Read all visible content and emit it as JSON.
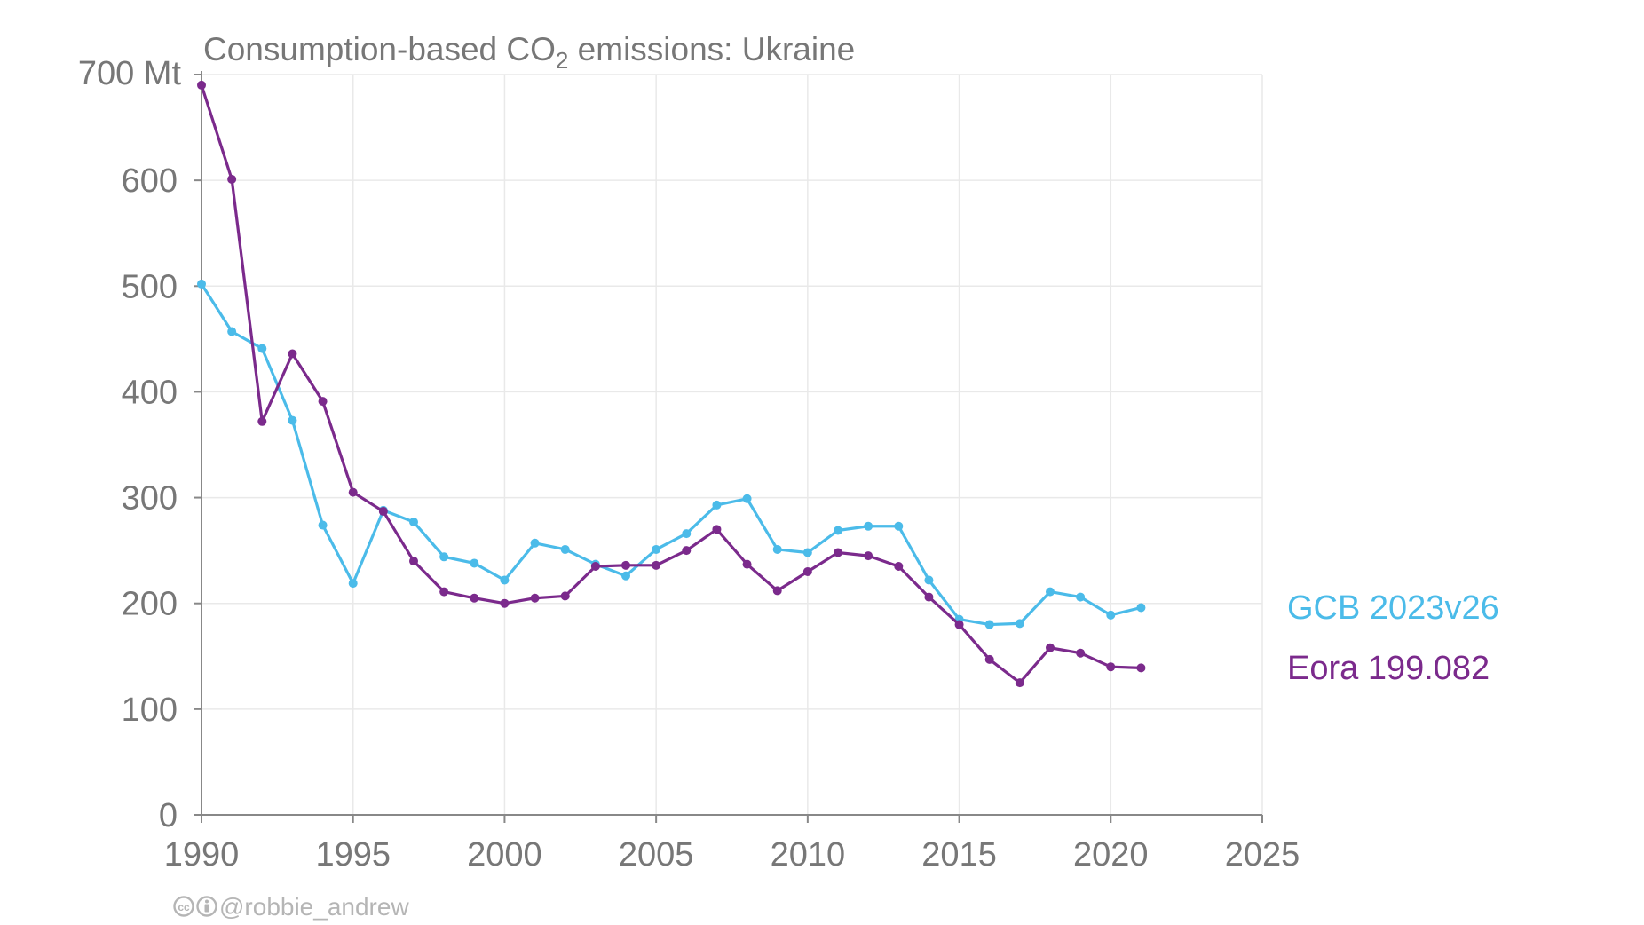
{
  "chart_data": {
    "type": "line",
    "title": "Consumption-based CO",
    "title_subscript": "2",
    "title_suffix": " emissions: Ukraine",
    "y_unit_label": "700 Mt",
    "x_ticks": [
      1990,
      1995,
      2000,
      2005,
      2010,
      2015,
      2020,
      2025
    ],
    "y_ticks": [
      0,
      100,
      200,
      300,
      400,
      500,
      600
    ],
    "xlim": [
      1990,
      2025
    ],
    "ylim": [
      0,
      700
    ],
    "grid": true,
    "legend": "direct labels at right end of lines",
    "x": [
      1990,
      1991,
      1992,
      1993,
      1994,
      1995,
      1996,
      1997,
      1998,
      1999,
      2000,
      2001,
      2002,
      2003,
      2004,
      2005,
      2006,
      2007,
      2008,
      2009,
      2010,
      2011,
      2012,
      2013,
      2014,
      2015,
      2016,
      2017,
      2018,
      2019,
      2020,
      2021
    ],
    "series": [
      {
        "name": "GCB 2023v26",
        "color": "#4bbbe9",
        "values": [
          502,
          457,
          441,
          373,
          274,
          219,
          288,
          277,
          244,
          238,
          222,
          257,
          251,
          237,
          226,
          251,
          266,
          293,
          299,
          251,
          248,
          269,
          273,
          273,
          222,
          185,
          180,
          181,
          211,
          206,
          189,
          196
        ]
      },
      {
        "name": "Eora 199.082",
        "color": "#7b2a8c",
        "values": [
          690,
          601,
          372,
          436,
          391,
          305,
          287,
          240,
          211,
          205,
          200,
          205,
          207,
          235,
          236,
          236,
          250,
          270,
          237,
          212,
          230,
          248,
          245,
          235,
          206,
          180,
          147,
          125,
          158,
          153,
          140,
          139
        ]
      }
    ]
  },
  "credit": {
    "icons": [
      "creative-commons-icon",
      "attribution-icon"
    ],
    "text": "@robbie_andrew",
    "color": "#b5b5b5"
  }
}
